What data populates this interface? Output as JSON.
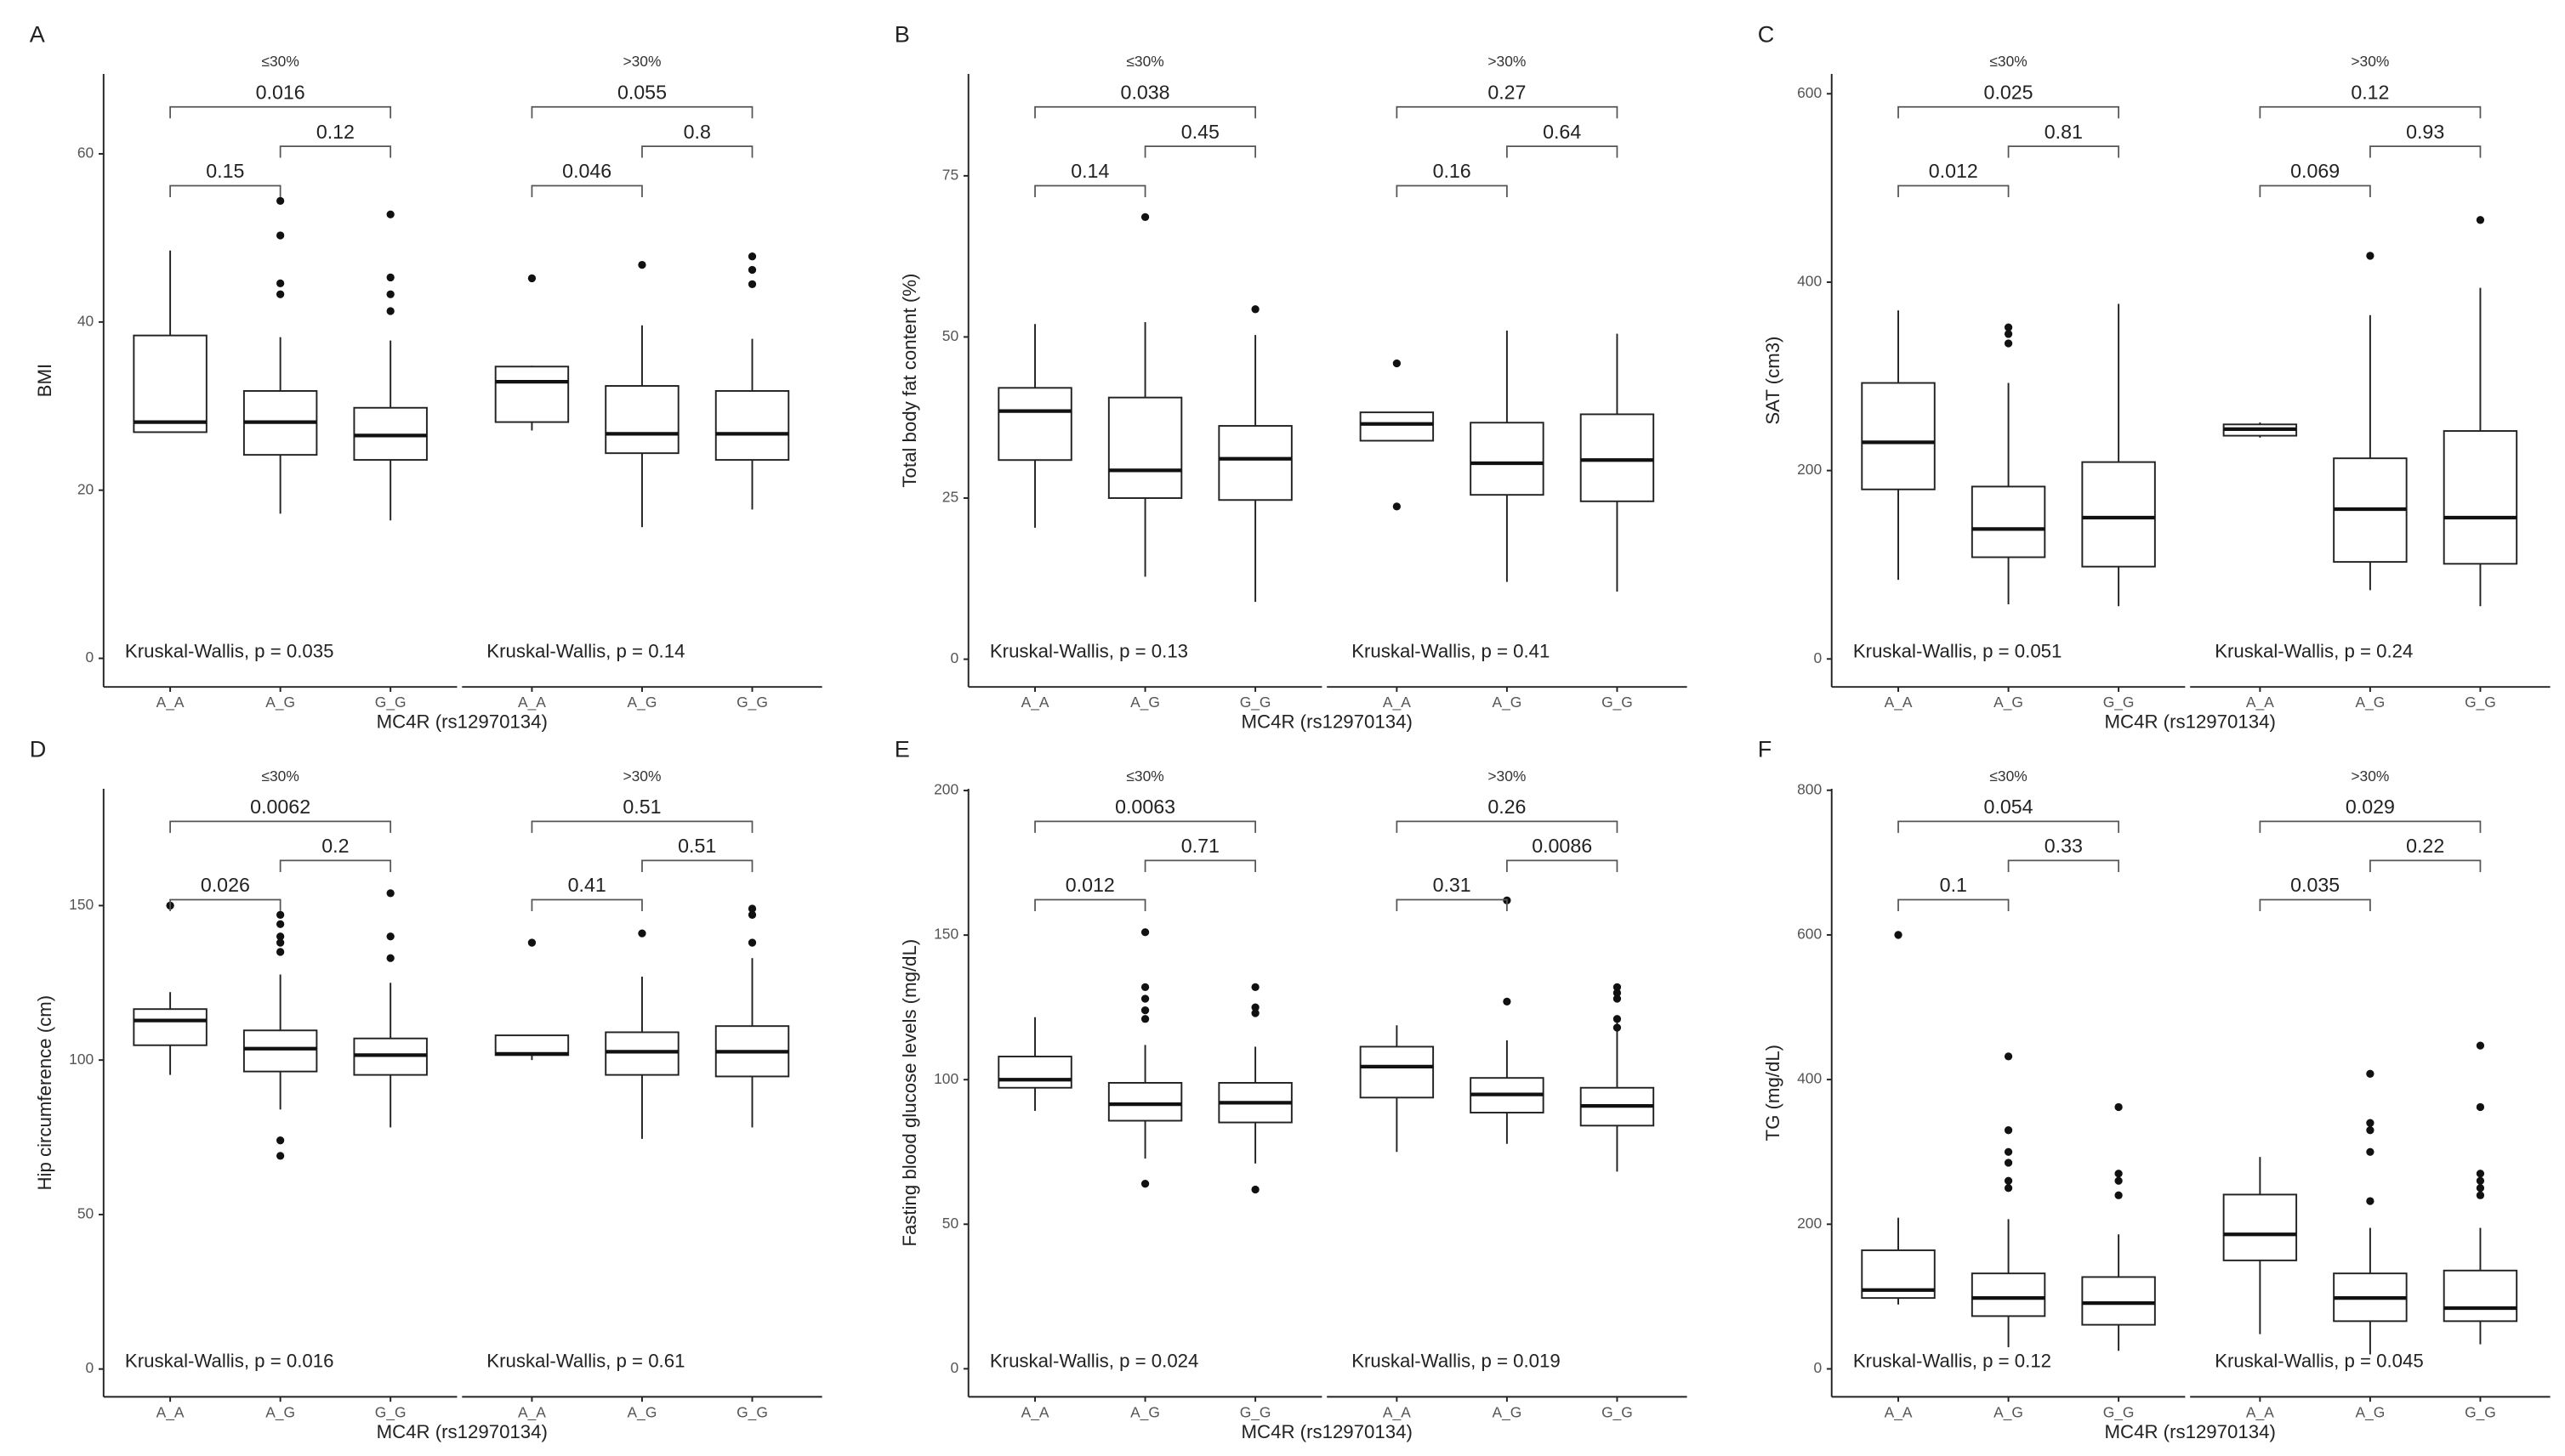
{
  "chart_data": [
    {
      "type": "box",
      "panel": "A",
      "ylabel": "BMI",
      "xlabel": "MC4R (rs12970134)",
      "ylim": [
        -3.4,
        69.5
      ],
      "yticks": [
        0,
        20,
        40,
        60
      ],
      "facets": [
        {
          "name": "≤30%",
          "categories": [
            "A_A",
            "A_G",
            "G_G"
          ],
          "comparisons": [
            "0.15",
            "0.12",
            "0.016"
          ],
          "test": "Kruskal-Wallis, p = 0.035",
          "boxes": [
            {
              "min": 26.9,
              "q1": 26.9,
              "median": 28.1,
              "q3": 38.4,
              "max": 48.5,
              "outliers": []
            },
            {
              "min": 17.2,
              "q1": 24.2,
              "median": 28.1,
              "q3": 31.8,
              "max": 38.2,
              "outliers": [
                54.4,
                50.3,
                44.6,
                43.3
              ]
            },
            {
              "min": 16.4,
              "q1": 23.6,
              "median": 26.5,
              "q3": 29.8,
              "max": 37.8,
              "outliers": [
                52.8,
                45.3,
                43.3,
                41.3
              ]
            }
          ]
        },
        {
          "name": ">30%",
          "categories": [
            "A_A",
            "A_G",
            "G_G"
          ],
          "comparisons": [
            "0.046",
            "0.8",
            "0.055"
          ],
          "test": "Kruskal-Wallis, p = 0.14",
          "boxes": [
            {
              "min": 27.1,
              "q1": 28.1,
              "median": 32.9,
              "q3": 34.7,
              "max": 34.8,
              "outliers": [
                45.2
              ]
            },
            {
              "min": 15.6,
              "q1": 24.4,
              "median": 26.7,
              "q3": 32.4,
              "max": 39.6,
              "outliers": [
                46.8
              ]
            },
            {
              "min": 17.7,
              "q1": 23.6,
              "median": 26.7,
              "q3": 31.8,
              "max": 38,
              "outliers": [
                47.8,
                46.2,
                44.5
              ]
            }
          ]
        }
      ]
    },
    {
      "type": "box",
      "panel": "B",
      "ylabel": "Total body fat content (%)",
      "xlabel": "MC4R (rs12970134)",
      "ylim": [
        -4.3,
        90.8
      ],
      "yticks": [
        0,
        25,
        50,
        75
      ],
      "facets": [
        {
          "name": "≤30%",
          "categories": [
            "A_A",
            "A_G",
            "G_G"
          ],
          "comparisons": [
            "0.14",
            "0.45",
            "0.038"
          ],
          "test": "Kruskal-Wallis, p = 0.13",
          "boxes": [
            {
              "min": 20.4,
              "q1": 30.9,
              "median": 38.5,
              "q3": 42.1,
              "max": 52,
              "outliers": []
            },
            {
              "min": 12.8,
              "q1": 25,
              "median": 29.3,
              "q3": 40.6,
              "max": 52.3,
              "outliers": [
                68.6
              ]
            },
            {
              "min": 8.9,
              "q1": 24.7,
              "median": 31.1,
              "q3": 36.2,
              "max": 50.3,
              "outliers": [
                54.3
              ]
            }
          ]
        },
        {
          "name": ">30%",
          "categories": [
            "A_A",
            "A_G",
            "G_G"
          ],
          "comparisons": [
            "0.16",
            "0.64",
            "0.27"
          ],
          "test": "Kruskal-Wallis, p = 0.41",
          "boxes": [
            {
              "min": 33.9,
              "q1": 33.9,
              "median": 36.5,
              "q3": 38.3,
              "max": 38.3,
              "outliers": [
                45.9,
                23.7
              ]
            },
            {
              "min": 12,
              "q1": 25.5,
              "median": 30.4,
              "q3": 36.7,
              "max": 51,
              "outliers": []
            },
            {
              "min": 10.5,
              "q1": 24.5,
              "median": 30.9,
              "q3": 38,
              "max": 50.5,
              "outliers": []
            }
          ]
        }
      ]
    },
    {
      "type": "box",
      "panel": "C",
      "ylabel": "SAT (cm3)",
      "xlabel": "MC4R (rs12970134)",
      "ylim": [
        -29.7,
        621
      ],
      "yticks": [
        0,
        200,
        400,
        600
      ],
      "facets": [
        {
          "name": "≤30%",
          "categories": [
            "A_A",
            "A_G",
            "G_G"
          ],
          "comparisons": [
            "0.012",
            "0.81",
            "0.025"
          ],
          "test": "Kruskal-Wallis, p = 0.051",
          "boxes": [
            {
              "min": 84,
              "q1": 180,
              "median": 230,
              "q3": 293,
              "max": 370,
              "outliers": []
            },
            {
              "min": 58,
              "q1": 108,
              "median": 138,
              "q3": 183,
              "max": 293,
              "outliers": [
                352,
                345,
                335
              ]
            },
            {
              "min": 56,
              "q1": 98,
              "median": 150,
              "q3": 209,
              "max": 377,
              "outliers": []
            }
          ]
        },
        {
          "name": ">30%",
          "categories": [
            "A_A",
            "A_G",
            "G_G"
          ],
          "comparisons": [
            "0.069",
            "0.93",
            "0.12"
          ],
          "test": "Kruskal-Wallis, p = 0.24",
          "boxes": [
            {
              "min": 235,
              "q1": 237,
              "median": 244,
              "q3": 249,
              "max": 251,
              "outliers": []
            },
            {
              "min": 73,
              "q1": 103,
              "median": 159,
              "q3": 213,
              "max": 365,
              "outliers": [
                428
              ]
            },
            {
              "min": 56,
              "q1": 101,
              "median": 150,
              "q3": 242,
              "max": 394,
              "outliers": [
                466
              ]
            }
          ]
        }
      ]
    },
    {
      "type": "box",
      "panel": "D",
      "ylabel": "Hip circumference (cm)",
      "xlabel": "MC4R (rs12970134)",
      "ylim": [
        -9,
        187.8
      ],
      "yticks": [
        0,
        50,
        100,
        150
      ],
      "facets": [
        {
          "name": "≤30%",
          "categories": [
            "A_A",
            "A_G",
            "G_G"
          ],
          "comparisons": [
            "0.026",
            "0.2",
            "0.0062"
          ],
          "test": "Kruskal-Wallis, p = 0.016",
          "boxes": [
            {
              "min": 95.2,
              "q1": 104.8,
              "median": 112.8,
              "q3": 116.5,
              "max": 122,
              "outliers": [
                150
              ]
            },
            {
              "min": 84,
              "q1": 96.3,
              "median": 103.7,
              "q3": 109.6,
              "max": 127.7,
              "outliers": [
                147,
                144,
                140,
                138,
                135,
                74,
                69
              ]
            },
            {
              "min": 78.2,
              "q1": 95.2,
              "median": 101.6,
              "q3": 107,
              "max": 125,
              "outliers": [
                154,
                140,
                133
              ]
            }
          ]
        },
        {
          "name": ">30%",
          "categories": [
            "A_A",
            "A_G",
            "G_G"
          ],
          "comparisons": [
            "0.41",
            "0.51",
            "0.51"
          ],
          "test": "Kruskal-Wallis, p = 0.61",
          "boxes": [
            {
              "min": 100,
              "q1": 101.6,
              "median": 102,
              "q3": 108,
              "max": 108,
              "outliers": [
                138
              ]
            },
            {
              "min": 74.5,
              "q1": 95.2,
              "median": 102.7,
              "q3": 109,
              "max": 127,
              "outliers": [
                141
              ]
            },
            {
              "min": 78.2,
              "q1": 94.7,
              "median": 102.7,
              "q3": 111,
              "max": 133,
              "outliers": [
                149,
                147,
                138
              ]
            }
          ]
        }
      ]
    },
    {
      "type": "box",
      "panel": "E",
      "ylabel": "Fasting blood glucose levels (mg/dL)",
      "xlabel": "MC4R (rs12970134)",
      "ylim": [
        -9.7,
        200.6
      ],
      "yticks": [
        0,
        50,
        100,
        150,
        200
      ],
      "facets": [
        {
          "name": "≤30%",
          "categories": [
            "A_A",
            "A_G",
            "G_G"
          ],
          "comparisons": [
            "0.012",
            "0.71",
            "0.0063"
          ],
          "test": "Kruskal-Wallis, p = 0.024",
          "boxes": [
            {
              "min": 89.2,
              "q1": 97.2,
              "median": 100,
              "q3": 108,
              "max": 121.6,
              "outliers": []
            },
            {
              "min": 72.7,
              "q1": 85.8,
              "median": 91.5,
              "q3": 98.9,
              "max": 112,
              "outliers": [
                151,
                132,
                128,
                124,
                121,
                64
              ]
            },
            {
              "min": 71,
              "q1": 85.2,
              "median": 92,
              "q3": 98.9,
              "max": 111.4,
              "outliers": [
                132,
                125,
                123,
                62
              ]
            }
          ]
        },
        {
          "name": ">30%",
          "categories": [
            "A_A",
            "A_G",
            "G_G"
          ],
          "comparisons": [
            "0.31",
            "0.0086",
            "0.26"
          ],
          "test": "Kruskal-Wallis, p = 0.019",
          "boxes": [
            {
              "min": 75,
              "q1": 93.8,
              "median": 104.5,
              "q3": 111.4,
              "max": 118.8,
              "outliers": []
            },
            {
              "min": 77.8,
              "q1": 88.6,
              "median": 94.9,
              "q3": 100.6,
              "max": 113.6,
              "outliers": [
                162,
                127
              ]
            },
            {
              "min": 68.2,
              "q1": 84.1,
              "median": 90.9,
              "q3": 97.2,
              "max": 121,
              "outliers": [
                132,
                130,
                128,
                121,
                118
              ]
            }
          ]
        }
      ]
    },
    {
      "type": "box",
      "panel": "F",
      "ylabel": "TG (mg/dL)",
      "xlabel": "MC4R (rs12970134)",
      "ylim": [
        -38.6,
        802
      ],
      "yticks": [
        0,
        200,
        400,
        600,
        800
      ],
      "facets": [
        {
          "name": "≤30%",
          "categories": [
            "A_A",
            "A_G",
            "G_G"
          ],
          "comparisons": [
            "0.1",
            "0.33",
            "0.054"
          ],
          "test": "Kruskal-Wallis, p = 0.12",
          "boxes": [
            {
              "min": 89,
              "q1": 98,
              "median": 109,
              "q3": 164,
              "max": 209,
              "outliers": [
                600
              ]
            },
            {
              "min": 30,
              "q1": 73,
              "median": 98,
              "q3": 132,
              "max": 207,
              "outliers": [
                432,
                330,
                300,
                285,
                260,
                250
              ]
            },
            {
              "min": 25,
              "q1": 61,
              "median": 91,
              "q3": 127,
              "max": 186,
              "outliers": [
                362,
                270,
                260,
                240
              ]
            }
          ]
        },
        {
          "name": ">30%",
          "categories": [
            "A_A",
            "A_G",
            "G_G"
          ],
          "comparisons": [
            "0.035",
            "0.22",
            "0.029"
          ],
          "test": "Kruskal-Wallis, p = 0.045",
          "boxes": [
            {
              "min": 48,
              "q1": 150,
              "median": 186,
              "q3": 241,
              "max": 293,
              "outliers": []
            },
            {
              "min": 20,
              "q1": 66,
              "median": 98,
              "q3": 132,
              "max": 195,
              "outliers": [
                408,
                340,
                330,
                300,
                232
              ]
            },
            {
              "min": 34,
              "q1": 66,
              "median": 84,
              "q3": 136,
              "max": 195,
              "outliers": [
                447,
                362,
                270,
                260,
                250,
                240
              ]
            }
          ]
        }
      ]
    }
  ]
}
